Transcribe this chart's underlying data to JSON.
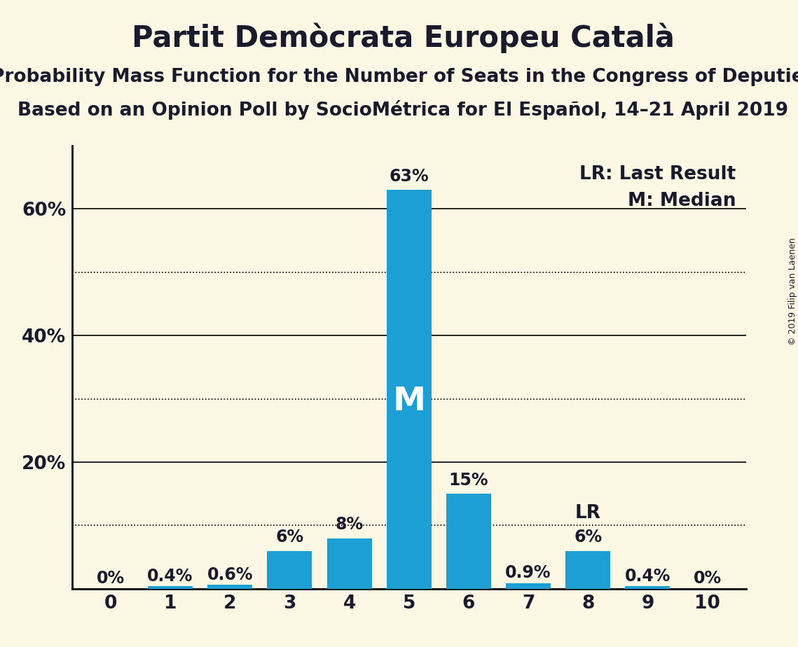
{
  "title": "Partit Demòcrata Europeu Català",
  "subtitle1": "Probability Mass Function for the Number of Seats in the Congress of Deputies",
  "subtitle2": "Based on an Opinion Poll by SocioMétrica for El Español, 14–21 April 2019",
  "copyright": "© 2019 Filip van Laenen",
  "seats": [
    0,
    1,
    2,
    3,
    4,
    5,
    6,
    7,
    8,
    9,
    10
  ],
  "probabilities": [
    0.0,
    0.4,
    0.6,
    6.0,
    8.0,
    63.0,
    15.0,
    0.9,
    6.0,
    0.4,
    0.0
  ],
  "labels": [
    "0%",
    "0.4%",
    "0.6%",
    "6%",
    "8%",
    "63%",
    "15%",
    "0.9%",
    "6%",
    "0.4%",
    "0%"
  ],
  "bar_color": "#1c9fd5",
  "background_color": "#fdf8e3",
  "median_seat": 5,
  "last_result_seat": 8,
  "ylim": [
    0,
    70
  ],
  "ytick_positions": [
    20,
    40,
    60
  ],
  "ytick_labels": [
    "20%",
    "40%",
    "60%"
  ],
  "dotted_lines": [
    10,
    30,
    50
  ],
  "solid_lines": [
    20,
    40,
    60
  ],
  "title_fontsize": 30,
  "subtitle_fontsize": 19,
  "label_fontsize": 17,
  "tick_fontsize": 19,
  "annotation_fontsize": 19,
  "m_fontsize": 34
}
